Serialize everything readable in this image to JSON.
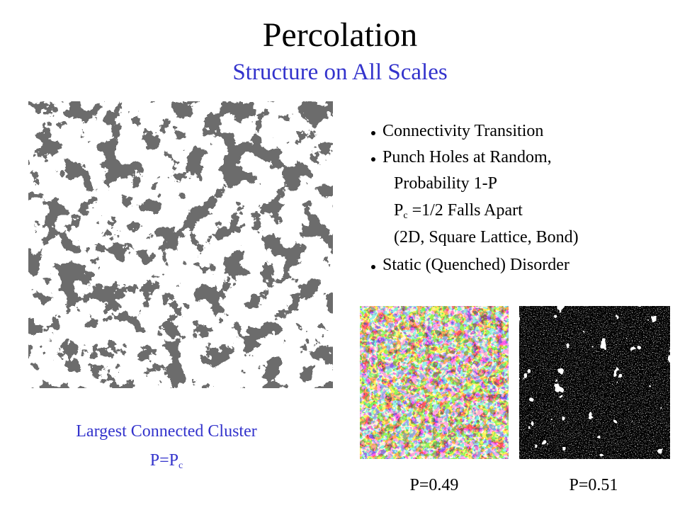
{
  "header": {
    "title": "Percolation",
    "subtitle": "Structure on All Scales"
  },
  "bullets": [
    {
      "text": "Connectivity Transition"
    },
    {
      "text": "Punch Holes at Random,",
      "lines": [
        "Probability 1-P",
        {
          "main": "P",
          "sub": "c",
          "rest": " =1/2 Falls Apart"
        },
        "(2D, Square Lattice, Bond)"
      ]
    },
    {
      "text": "Static (Quenched) Disorder"
    }
  ],
  "caption": {
    "line1": "Largest Connected Cluster",
    "line2": {
      "main": "P=P",
      "sub": "c"
    }
  },
  "images": [
    {
      "label": "P=0.49"
    },
    {
      "label": "P=0.51"
    }
  ]
}
